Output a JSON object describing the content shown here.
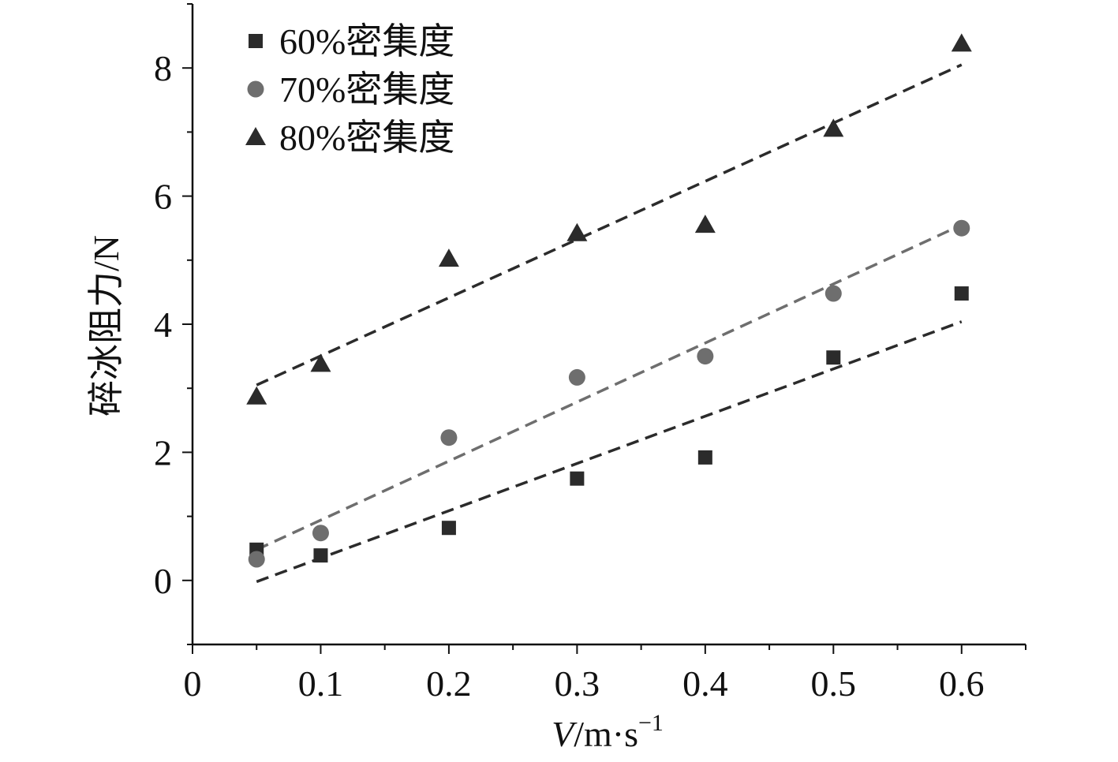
{
  "chart_data": {
    "type": "scatter",
    "title": "",
    "xlabel": {
      "italic": "V",
      "rest": "/m·s",
      "sup": "−1"
    },
    "ylabel": "碎冰阻力/N",
    "xlim": [
      0,
      0.65
    ],
    "ylim": [
      -1,
      9
    ],
    "x_ticks": [
      0,
      0.1,
      0.2,
      0.3,
      0.4,
      0.5,
      0.6
    ],
    "x_tick_labels": [
      "0",
      "0.1",
      "0.2",
      "0.3",
      "0.4",
      "0.5",
      "0.6"
    ],
    "y_ticks": [
      0,
      2,
      4,
      6,
      8
    ],
    "y_tick_labels": [
      "0",
      "2",
      "4",
      "6",
      "8"
    ],
    "grid": false,
    "legend_position": "top-left",
    "series": [
      {
        "name": "60%密集度",
        "marker": "square",
        "color": "#2b2b2b",
        "x": [
          0.05,
          0.1,
          0.2,
          0.3,
          0.4,
          0.5,
          0.6
        ],
        "y": [
          0.48,
          0.39,
          0.82,
          1.59,
          1.92,
          3.48,
          4.48
        ],
        "fit": {
          "x": [
            0.05,
            0.6
          ],
          "y": [
            -0.02,
            4.04
          ]
        }
      },
      {
        "name": "70%密集度",
        "marker": "circle",
        "color": "#6e6e6e",
        "x": [
          0.05,
          0.1,
          0.2,
          0.3,
          0.4,
          0.5,
          0.6
        ],
        "y": [
          0.33,
          0.74,
          2.23,
          3.17,
          3.5,
          4.48,
          5.5
        ],
        "fit": {
          "x": [
            0.05,
            0.6
          ],
          "y": [
            0.48,
            5.55
          ]
        }
      },
      {
        "name": "80%密集度",
        "marker": "triangle",
        "color": "#2b2b2b",
        "x": [
          0.05,
          0.1,
          0.2,
          0.3,
          0.4,
          0.5,
          0.6
        ],
        "y": [
          2.87,
          3.38,
          5.02,
          5.42,
          5.55,
          7.05,
          8.38
        ],
        "fit": {
          "x": [
            0.05,
            0.6
          ],
          "y": [
            3.05,
            8.05
          ]
        }
      }
    ]
  }
}
